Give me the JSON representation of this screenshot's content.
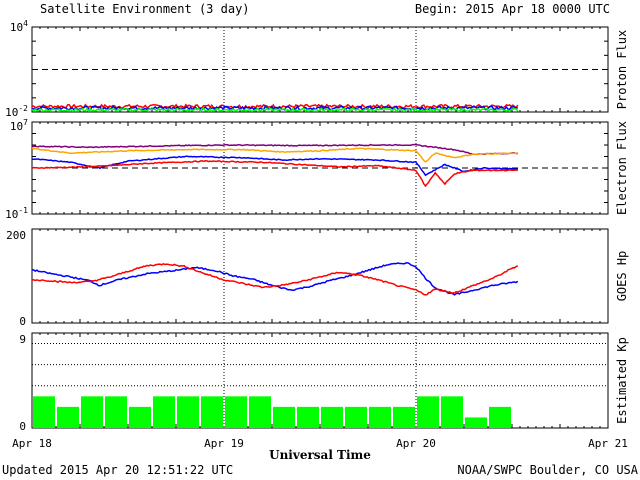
{
  "header": {
    "title": "Satellite Environment (3 day)",
    "begin": "Begin:  2015 Apr 18 0000 UTC"
  },
  "footer": {
    "updated": "Updated 2015 Apr 20 12:51:22 UTC",
    "credit": "NOAA/SWPC Boulder, CO USA"
  },
  "x_axis": {
    "title": "Universal Time",
    "tick_labels": [
      "Apr 18",
      "Apr 19",
      "Apr 20",
      "Apr 21"
    ],
    "range_days": [
      0,
      3
    ],
    "data_end_day": 2.53
  },
  "colors": {
    "red": "#ff0000",
    "blue": "#0000ff",
    "green": "#00ff00",
    "orange": "#ffa500",
    "purple": "#800080",
    "kp_bar": "#00ff00"
  },
  "chart_data": [
    {
      "type": "line",
      "name": "proton_flux",
      "ylabel": "Proton Flux",
      "yscale": "log",
      "ylim_exp": [
        -2,
        4
      ],
      "ytick_labels": {
        "top": {
          "base": "10",
          "exp": "4"
        },
        "bottom": {
          "base": "10",
          "exp": "-2"
        }
      },
      "threshold_exp": 1,
      "series": [
        {
          "color": "red",
          "level_exp": -1.6,
          "noise": 0.12
        },
        {
          "color": "blue",
          "level_exp": -1.72,
          "noise": 0.12
        },
        {
          "color": "green",
          "level_exp": -1.85,
          "noise": 0.1
        }
      ]
    },
    {
      "type": "line",
      "name": "electron_flux",
      "ylabel": "Electron Flux",
      "yscale": "log",
      "ylim_exp": [
        -1,
        7
      ],
      "ytick_labels": {
        "top": {
          "base": "10",
          "exp": "7"
        },
        "bottom": {
          "base": "10",
          "exp": "-1"
        }
      },
      "threshold_exp": 3,
      "series": [
        {
          "color": "purple",
          "points": [
            [
              0,
              4.9
            ],
            [
              0.3,
              4.8
            ],
            [
              0.6,
              4.9
            ],
            [
              1.0,
              5.0
            ],
            [
              1.4,
              4.95
            ],
            [
              1.8,
              5.0
            ],
            [
              2.0,
              5.0
            ],
            [
              2.1,
              4.8
            ],
            [
              2.2,
              4.6
            ],
            [
              2.3,
              4.2
            ],
            [
              2.53,
              4.3
            ]
          ]
        },
        {
          "color": "orange",
          "points": [
            [
              0,
              4.7
            ],
            [
              0.2,
              4.3
            ],
            [
              0.5,
              4.5
            ],
            [
              0.8,
              4.6
            ],
            [
              1.1,
              4.6
            ],
            [
              1.3,
              4.4
            ],
            [
              1.5,
              4.5
            ],
            [
              1.7,
              4.7
            ],
            [
              2.0,
              4.5
            ],
            [
              2.05,
              3.5
            ],
            [
              2.1,
              4.3
            ],
            [
              2.2,
              3.9
            ],
            [
              2.3,
              4.2
            ],
            [
              2.53,
              4.3
            ]
          ]
        },
        {
          "color": "blue",
          "points": [
            [
              0,
              3.8
            ],
            [
              0.2,
              3.5
            ],
            [
              0.35,
              3.0
            ],
            [
              0.5,
              3.6
            ],
            [
              0.8,
              4.0
            ],
            [
              1.1,
              3.9
            ],
            [
              1.3,
              3.7
            ],
            [
              1.5,
              3.8
            ],
            [
              1.8,
              3.7
            ],
            [
              2.0,
              3.5
            ],
            [
              2.05,
              2.4
            ],
            [
              2.15,
              3.3
            ],
            [
              2.25,
              2.7
            ],
            [
              2.35,
              3.0
            ],
            [
              2.53,
              2.9
            ]
          ]
        },
        {
          "color": "red",
          "points": [
            [
              0,
              3.0
            ],
            [
              0.3,
              3.1
            ],
            [
              0.6,
              3.4
            ],
            [
              0.9,
              3.6
            ],
            [
              1.2,
              3.5
            ],
            [
              1.4,
              3.3
            ],
            [
              1.6,
              3.1
            ],
            [
              1.8,
              3.2
            ],
            [
              2.0,
              2.8
            ],
            [
              2.05,
              1.4
            ],
            [
              2.1,
              2.6
            ],
            [
              2.15,
              1.6
            ],
            [
              2.2,
              2.5
            ],
            [
              2.3,
              2.8
            ],
            [
              2.53,
              2.8
            ]
          ]
        }
      ]
    },
    {
      "type": "line",
      "name": "goes_hp",
      "ylabel": "GOES Hp",
      "ylim": [
        0,
        200
      ],
      "ytick_labels": [
        "0",
        "200"
      ],
      "series": [
        {
          "color": "blue",
          "points": [
            [
              0,
              113
            ],
            [
              0.1,
              105
            ],
            [
              0.2,
              98
            ],
            [
              0.3,
              90
            ],
            [
              0.35,
              80
            ],
            [
              0.45,
              92
            ],
            [
              0.6,
              105
            ],
            [
              0.75,
              112
            ],
            [
              0.85,
              118
            ],
            [
              0.95,
              112
            ],
            [
              1.05,
              100
            ],
            [
              1.15,
              93
            ],
            [
              1.25,
              80
            ],
            [
              1.35,
              70
            ],
            [
              1.45,
              78
            ],
            [
              1.55,
              90
            ],
            [
              1.65,
              100
            ],
            [
              1.75,
              112
            ],
            [
              1.85,
              124
            ],
            [
              1.95,
              128
            ],
            [
              2.0,
              120
            ],
            [
              2.05,
              95
            ],
            [
              2.1,
              75
            ],
            [
              2.2,
              60
            ],
            [
              2.3,
              70
            ],
            [
              2.4,
              80
            ],
            [
              2.53,
              88
            ]
          ]
        },
        {
          "color": "red",
          "points": [
            [
              0,
              92
            ],
            [
              0.1,
              90
            ],
            [
              0.2,
              86
            ],
            [
              0.3,
              88
            ],
            [
              0.4,
              97
            ],
            [
              0.5,
              110
            ],
            [
              0.6,
              122
            ],
            [
              0.7,
              126
            ],
            [
              0.8,
              120
            ],
            [
              0.9,
              105
            ],
            [
              1.0,
              92
            ],
            [
              1.1,
              84
            ],
            [
              1.2,
              76
            ],
            [
              1.3,
              80
            ],
            [
              1.4,
              88
            ],
            [
              1.5,
              98
            ],
            [
              1.6,
              108
            ],
            [
              1.7,
              102
            ],
            [
              1.8,
              92
            ],
            [
              1.9,
              80
            ],
            [
              2.0,
              70
            ],
            [
              2.05,
              60
            ],
            [
              2.1,
              72
            ],
            [
              2.2,
              64
            ],
            [
              2.3,
              80
            ],
            [
              2.4,
              95
            ],
            [
              2.53,
              122
            ]
          ]
        }
      ]
    },
    {
      "type": "bar",
      "name": "estimated_kp",
      "ylabel": "Estimated Kp",
      "ylim": [
        0,
        9
      ],
      "ytick_labels": [
        "0",
        "9"
      ],
      "gridlines": [
        4,
        6,
        8
      ],
      "bar_width_hours": 3,
      "values": [
        3,
        2,
        3,
        3,
        2,
        3,
        3,
        3,
        3,
        3,
        2,
        2,
        2,
        2,
        2,
        2,
        3,
        3,
        1,
        2
      ]
    }
  ]
}
